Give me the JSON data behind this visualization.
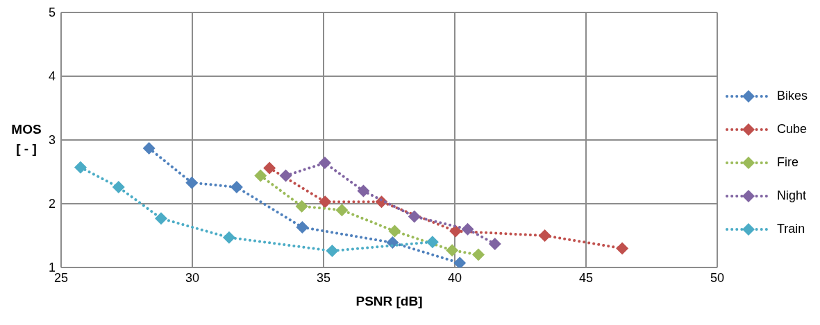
{
  "chart_data": {
    "type": "scatter",
    "xlabel": "PSNR [dB]",
    "ylabel": "MOS\n[ - ]",
    "xlim": [
      25,
      50
    ],
    "xticks": [
      25,
      30,
      35,
      40,
      45,
      50
    ],
    "ylim": [
      1,
      5
    ],
    "yticks": [
      1,
      2,
      3,
      4,
      5
    ],
    "grid": true,
    "legend": "right",
    "marker": "diamond",
    "line_style": "dotted",
    "series": [
      {
        "name": "Bikes",
        "color": "#4f81bd",
        "type": "line",
        "x": [
          28.35,
          29.98,
          31.69,
          34.19,
          37.63,
          40.19
        ],
        "values": [
          2.87,
          2.33,
          2.26,
          1.63,
          1.39,
          1.07
        ]
      },
      {
        "name": "Cube",
        "color": "#c0504d",
        "type": "line",
        "x": [
          32.94,
          35.06,
          37.21,
          40.03,
          43.43,
          46.38
        ],
        "values": [
          2.56,
          2.03,
          2.03,
          1.57,
          1.5,
          1.3
        ]
      },
      {
        "name": "Fire",
        "color": "#9bbb59",
        "type": "line",
        "x": [
          32.6,
          34.17,
          35.7,
          37.71,
          39.9,
          40.9
        ],
        "values": [
          2.44,
          1.96,
          1.9,
          1.57,
          1.27,
          1.2
        ]
      },
      {
        "name": "Night",
        "color": "#8064a2",
        "type": "line",
        "x": [
          33.56,
          35.05,
          36.52,
          38.46,
          40.49,
          41.53
        ],
        "values": [
          2.44,
          2.64,
          2.2,
          1.8,
          1.6,
          1.37
        ]
      },
      {
        "name": "Train",
        "color": "#4bacc6",
        "type": "line",
        "x": [
          25.74,
          27.19,
          28.81,
          31.4,
          35.33,
          39.15
        ],
        "values": [
          2.57,
          2.26,
          1.77,
          1.47,
          1.26,
          1.4
        ]
      }
    ]
  }
}
